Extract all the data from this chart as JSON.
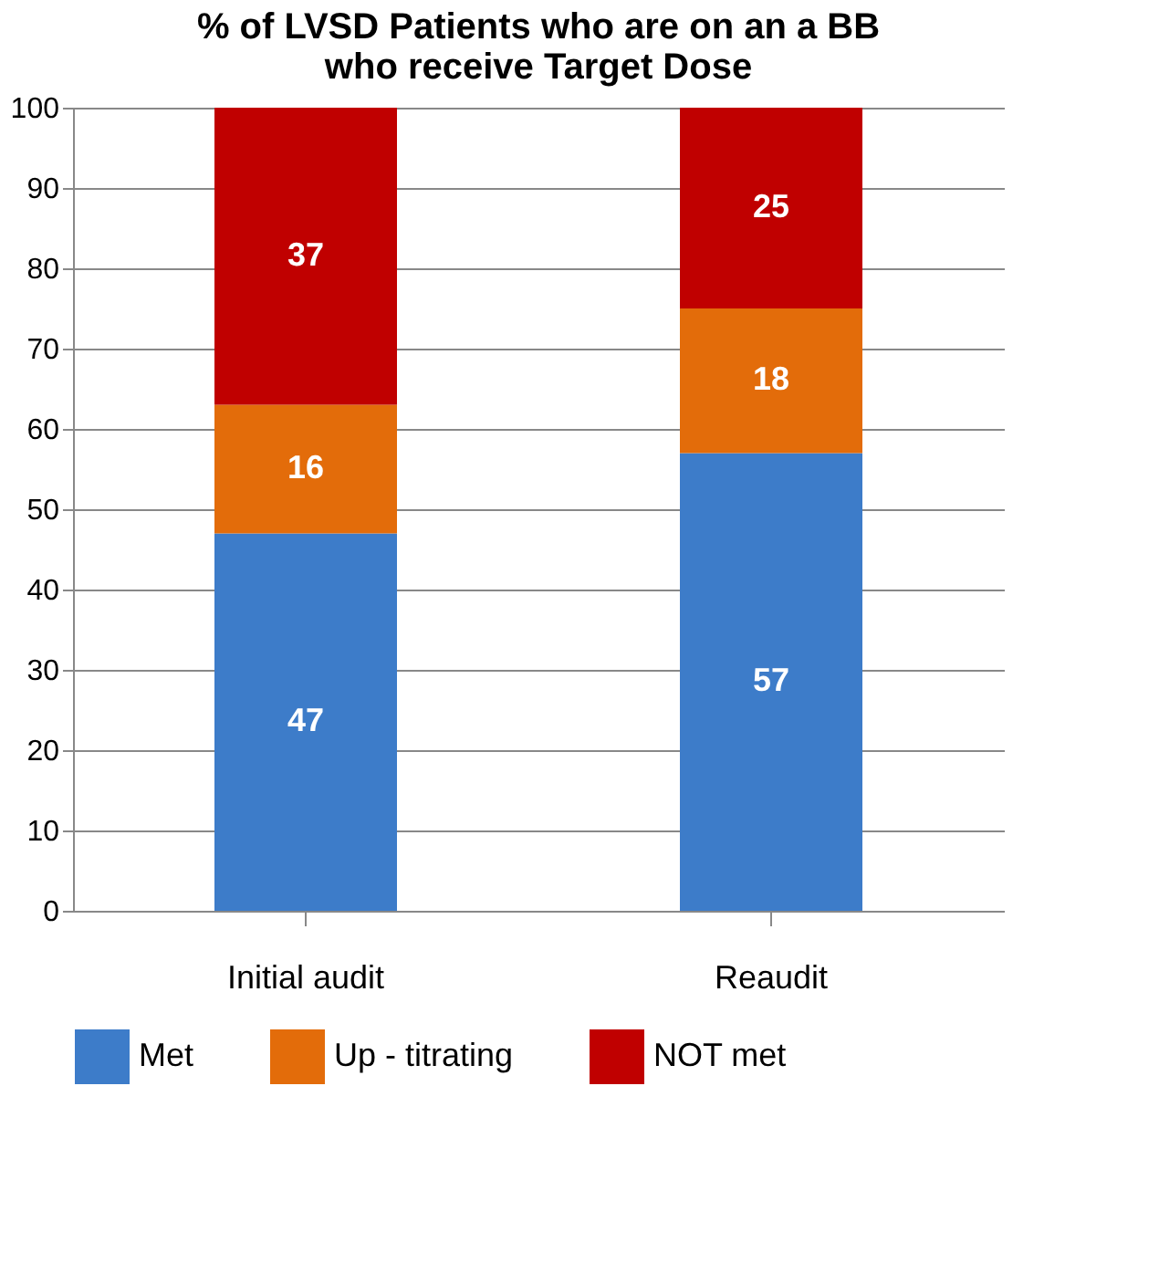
{
  "chart_data": {
    "type": "bar",
    "title": [
      "% of LVSD Patients who are on an a BB",
      "who receive Target Dose"
    ],
    "categories": [
      "Initial audit",
      "Reaudit"
    ],
    "stacked": true,
    "series": [
      {
        "name": "Met",
        "color": "#3d7cc9",
        "values": [
          47,
          57
        ]
      },
      {
        "name": "Up - titrating",
        "color": "#e36c0a",
        "values": [
          16,
          18
        ]
      },
      {
        "name": "NOT met",
        "color": "#c00000",
        "values": [
          37,
          25
        ]
      }
    ],
    "ylim": [
      0,
      100
    ],
    "yticks": [
      0,
      10,
      20,
      30,
      40,
      50,
      60,
      70,
      80,
      90,
      100
    ],
    "grid": "y",
    "legend": "bottom",
    "data_labels": true
  }
}
